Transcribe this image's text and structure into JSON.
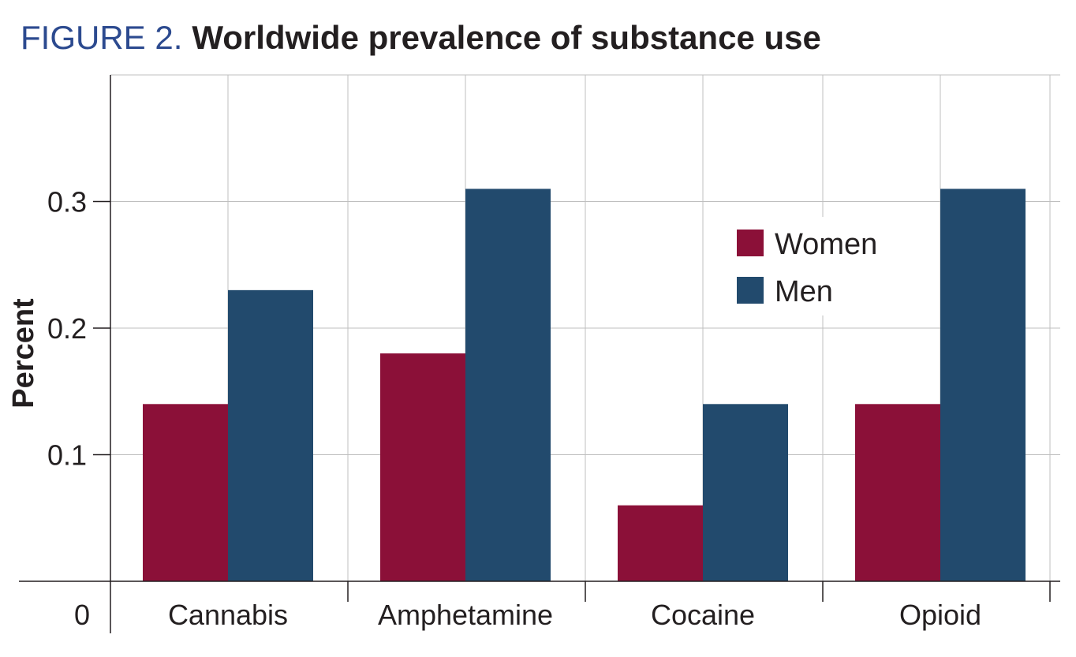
{
  "figure": {
    "label": "FIGURE  2.",
    "title": "Worldwide prevalence of substance use"
  },
  "colors": {
    "women": "#8b1038",
    "men": "#224a6d",
    "grid": "#bfbfbf",
    "axis": "#231f20",
    "label_blue": "#2c4a8f"
  },
  "chart_data": {
    "type": "bar",
    "title": "Worldwide prevalence of substance use",
    "xlabel": "",
    "ylabel": "Percent",
    "categories": [
      "Cannabis",
      "Amphetamine",
      "Cocaine",
      "Opioid"
    ],
    "series": [
      {
        "name": "Women",
        "values": [
          0.14,
          0.18,
          0.06,
          0.14
        ]
      },
      {
        "name": "Men",
        "values": [
          0.23,
          0.31,
          0.14,
          0.31
        ]
      }
    ],
    "y_ticks": [
      0.1,
      0.2,
      0.3
    ],
    "y_tick_labels": [
      "0.1",
      "0.2",
      "0.3"
    ],
    "zero_label": "0",
    "ylim": [
      0,
      0.4
    ],
    "grid": true,
    "legend": {
      "position": "top-right",
      "entries": [
        "Women",
        "Men"
      ]
    }
  }
}
